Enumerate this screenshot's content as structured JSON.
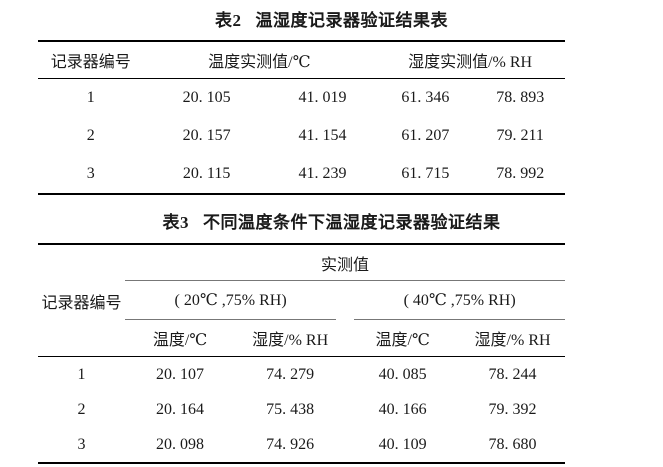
{
  "page": {
    "colors": {
      "background": "#ffffff",
      "text": "#1a1a1a",
      "rule_heavy": "#000000",
      "rule_thin": "#000000",
      "rule_light": "#777777"
    }
  },
  "table2": {
    "caption_label": "表2",
    "caption_text": "温湿度记录器验证结果表",
    "header": {
      "recorder": "记录器编号",
      "temp_group": "温度实测值/℃",
      "humidity_group": "湿度实测值/% RH"
    },
    "rows": [
      {
        "id": "1",
        "temp1": "20. 105",
        "temp2": "41. 019",
        "hum1": "61. 346",
        "hum2": "78. 893"
      },
      {
        "id": "2",
        "temp1": "20. 157",
        "temp2": "41. 154",
        "hum1": "61. 207",
        "hum2": "79. 211"
      },
      {
        "id": "3",
        "temp1": "20. 115",
        "temp2": "41. 239",
        "hum1": "61. 715",
        "hum2": "78. 992"
      }
    ]
  },
  "table3": {
    "caption_label": "表3",
    "caption_text": "不同温度条件下温湿度记录器验证结果",
    "header": {
      "recorder": "记录器编号",
      "measured_group": "实测值",
      "cond1": "( 20℃ ,75% RH)",
      "cond2": "( 40℃ ,75% RH)",
      "sub": [
        "温度/℃",
        "湿度/% RH",
        "温度/℃",
        "湿度/% RH"
      ]
    },
    "rows": [
      {
        "id": "1",
        "t20": "20. 107",
        "h75a": "74. 279",
        "t40": "40. 085",
        "h75b": "78. 244"
      },
      {
        "id": "2",
        "t20": "20. 164",
        "h75a": "75. 438",
        "t40": "40. 166",
        "h75b": "79. 392"
      },
      {
        "id": "3",
        "t20": "20. 098",
        "h75a": "74. 926",
        "t40": "40. 109",
        "h75b": "78. 680"
      }
    ]
  }
}
